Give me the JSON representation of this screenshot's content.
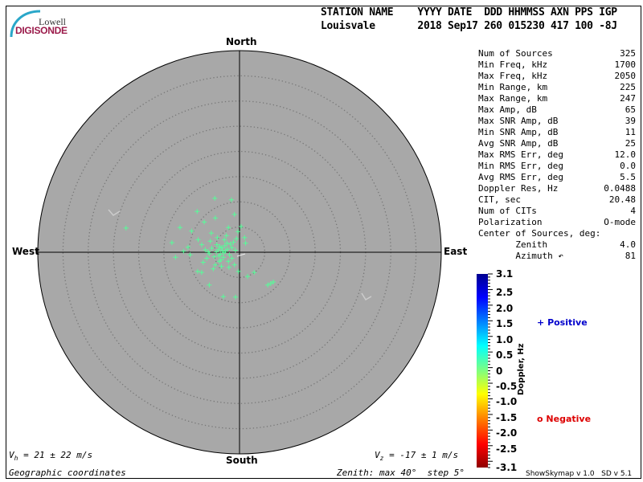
{
  "logo": {
    "line1": "Lowell",
    "line2": "DIGISONDE"
  },
  "header": {
    "labels": "STATION NAME    YYYY DATE  DDD HHMMSS AXN PPS IGP",
    "values": "Louisvale       2018 Sep17 260 015230 417 100 -8J"
  },
  "directions": {
    "north": "North",
    "south": "South",
    "east": "East",
    "west": "West"
  },
  "stats": [
    {
      "label": "Num of Sources",
      "value": "325"
    },
    {
      "label": "Min Freq, kHz",
      "value": "1700"
    },
    {
      "label": "Max Freq, kHz",
      "value": "2050"
    },
    {
      "label": "Min Range, km",
      "value": "225"
    },
    {
      "label": "Max Range, km",
      "value": "247"
    },
    {
      "label": "Max Amp, dB",
      "value": "65"
    },
    {
      "label": "Max SNR Amp, dB",
      "value": "39"
    },
    {
      "label": "Min SNR Amp, dB",
      "value": "11"
    },
    {
      "label": "Avg SNR Amp, dB",
      "value": "25"
    },
    {
      "label": "Max RMS Err, deg",
      "value": "12.0"
    },
    {
      "label": "Min RMS Err, deg",
      "value": "0.0"
    },
    {
      "label": "Avg RMS Err, deg",
      "value": "5.5"
    },
    {
      "label": "Doppler Res, Hz",
      "value": "0.0488"
    },
    {
      "label": "CIT, sec",
      "value": "20.48"
    },
    {
      "label": "Num of CITs",
      "value": "4"
    },
    {
      "label": "Polarization",
      "value": "O-mode"
    },
    {
      "label": "Center of Sources, deg:",
      "value": ""
    },
    {
      "label": "       Zenith",
      "value": "4.0"
    },
    {
      "label": "       Azimuth ↶",
      "value": "81"
    }
  ],
  "colorbar": {
    "title": "Doppler, Hz",
    "ticks": [
      "3.1",
      "2.5",
      "2.0",
      "1.5",
      "1.0",
      "0.5",
      "0",
      "-0.5",
      "-1.0",
      "-1.5",
      "-2.0",
      "-2.5",
      "-3.1"
    ],
    "range": [
      -3.1,
      3.1
    ]
  },
  "legend": {
    "positive": {
      "symbol": "+",
      "label": "Positive",
      "color": "#0000cc"
    },
    "negative": {
      "symbol": "o",
      "label": "Negative",
      "color": "#dd0000"
    }
  },
  "footer": {
    "vh": "= 21 ± 22 m/s",
    "vz": "= -17 ± 1 m/s",
    "coords": "Geographic coordinates",
    "zenith": "Zenith: max 40°  step 5°",
    "version": "ShowSkymap v 1.0   SD v 5.1"
  },
  "chart_data": {
    "type": "scatter",
    "projection": "polar skymap, zenith angle radial",
    "zenith_max_deg": 40,
    "zenith_step_deg": 5,
    "plot_background": "#a8a8a8",
    "source_color": "#55ff99",
    "note_units": "points as [east_deg, north_deg] zenith-angle offsets",
    "points": [
      [
        -22.5,
        4.8
      ],
      [
        -4.9,
        10.7
      ],
      [
        -1.6,
        10.4
      ],
      [
        -8.4,
        8.1
      ],
      [
        -1,
        7.5
      ],
      [
        -11.8,
        4.9
      ],
      [
        -13.4,
        1.9
      ],
      [
        -12.7,
        -1
      ],
      [
        -0.8,
        -8.9
      ],
      [
        -3.2,
        -8.8
      ],
      [
        5.6,
        -6.5
      ],
      [
        6.7,
        -5.9
      ],
      [
        6.2,
        -6.2
      ],
      [
        2.9,
        -4
      ],
      [
        1.6,
        -4.8
      ],
      [
        1,
        2.9
      ],
      [
        -6,
        -6.5
      ],
      [
        -7.5,
        -4
      ],
      [
        -8.3,
        -3.8
      ],
      [
        -11.1,
        0.2
      ],
      [
        -6.2,
        0.1
      ],
      [
        -4.8,
        6.8
      ],
      [
        -7,
        6
      ],
      [
        -2.2,
        4.9
      ],
      [
        0.3,
        5.1
      ],
      [
        -0.3,
        4.1
      ],
      [
        -9.5,
        4.2
      ],
      [
        -10.2,
        1
      ],
      [
        -9.8,
        -0.5
      ],
      [
        -1,
        -2.5
      ],
      [
        -0.2,
        -3.8
      ],
      [
        1.2,
        1.8
      ],
      [
        -0.6,
        2.7
      ],
      [
        -4.5,
        1.5
      ],
      [
        -4.2,
        0.5
      ],
      [
        -3.8,
        -0.4
      ],
      [
        -3.5,
        0.9
      ],
      [
        -3.2,
        -1
      ],
      [
        -2.8,
        0.2
      ],
      [
        -2.5,
        1.8
      ],
      [
        -4,
        -1.8
      ],
      [
        -5,
        -0.9
      ],
      [
        -5.5,
        0.8
      ],
      [
        -6.5,
        -1.2
      ],
      [
        -3,
        2.5
      ],
      [
        -2,
        -0.5
      ],
      [
        -1.5,
        0.9
      ],
      [
        -2.2,
        -1.8
      ],
      [
        -4.8,
        -2.5
      ],
      [
        -5.8,
        2.2
      ],
      [
        -6.8,
        0.5
      ],
      [
        -7.5,
        1.5
      ],
      [
        -3.6,
        -2.8
      ],
      [
        -2.6,
        3.3
      ],
      [
        -1.2,
        2
      ],
      [
        -4.4,
        2.9
      ],
      [
        -5.2,
        -3.3
      ],
      [
        -3.9,
        1.1
      ],
      [
        -3.1,
        -0.1
      ],
      [
        -4.1,
        -0.7
      ],
      [
        -2.9,
        1.3
      ],
      [
        -3.4,
        0.3
      ],
      [
        -4.6,
        0.1
      ],
      [
        -3.7,
        -1.5
      ],
      [
        -2.4,
        0.6
      ],
      [
        -1.8,
        1.6
      ],
      [
        -6,
        -0.3
      ],
      [
        -7.2,
        -2
      ],
      [
        -8.2,
        2.5
      ],
      [
        -0.8,
        0.4
      ],
      [
        -1.5,
        -1.2
      ],
      [
        -5.6,
        3.8
      ],
      [
        -2.1,
        -3
      ]
    ]
  }
}
